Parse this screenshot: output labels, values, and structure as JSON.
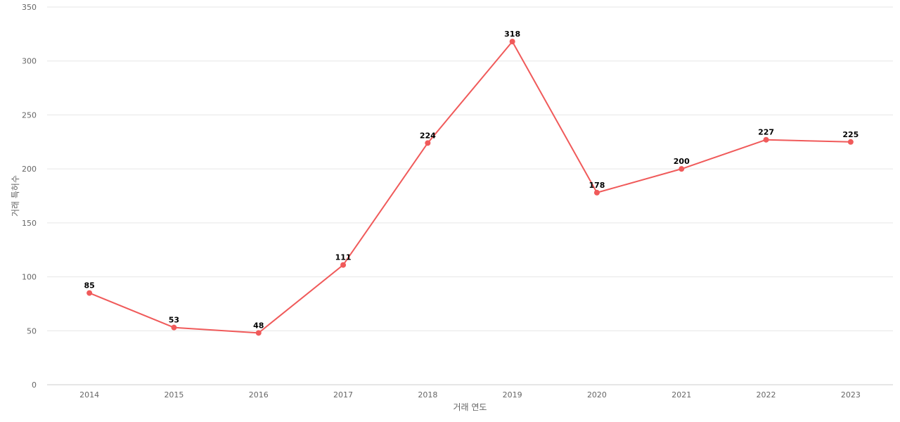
{
  "chart_data": {
    "type": "line",
    "title": "",
    "xlabel": "거래 연도",
    "ylabel": "거래 특허수",
    "categories": [
      "2014",
      "2015",
      "2016",
      "2017",
      "2018",
      "2019",
      "2020",
      "2021",
      "2022",
      "2023"
    ],
    "series": [
      {
        "values": [
          85,
          53,
          48,
          111,
          224,
          318,
          178,
          200,
          227,
          225
        ]
      }
    ],
    "ylim": [
      0,
      350
    ],
    "yticks": [
      0,
      50,
      100,
      150,
      200,
      250,
      300,
      350
    ],
    "grid": true,
    "data_labels": true,
    "colors": {
      "line": "#f05a5a",
      "point": "#f05a5a",
      "grid": "#e6e6e6"
    }
  }
}
